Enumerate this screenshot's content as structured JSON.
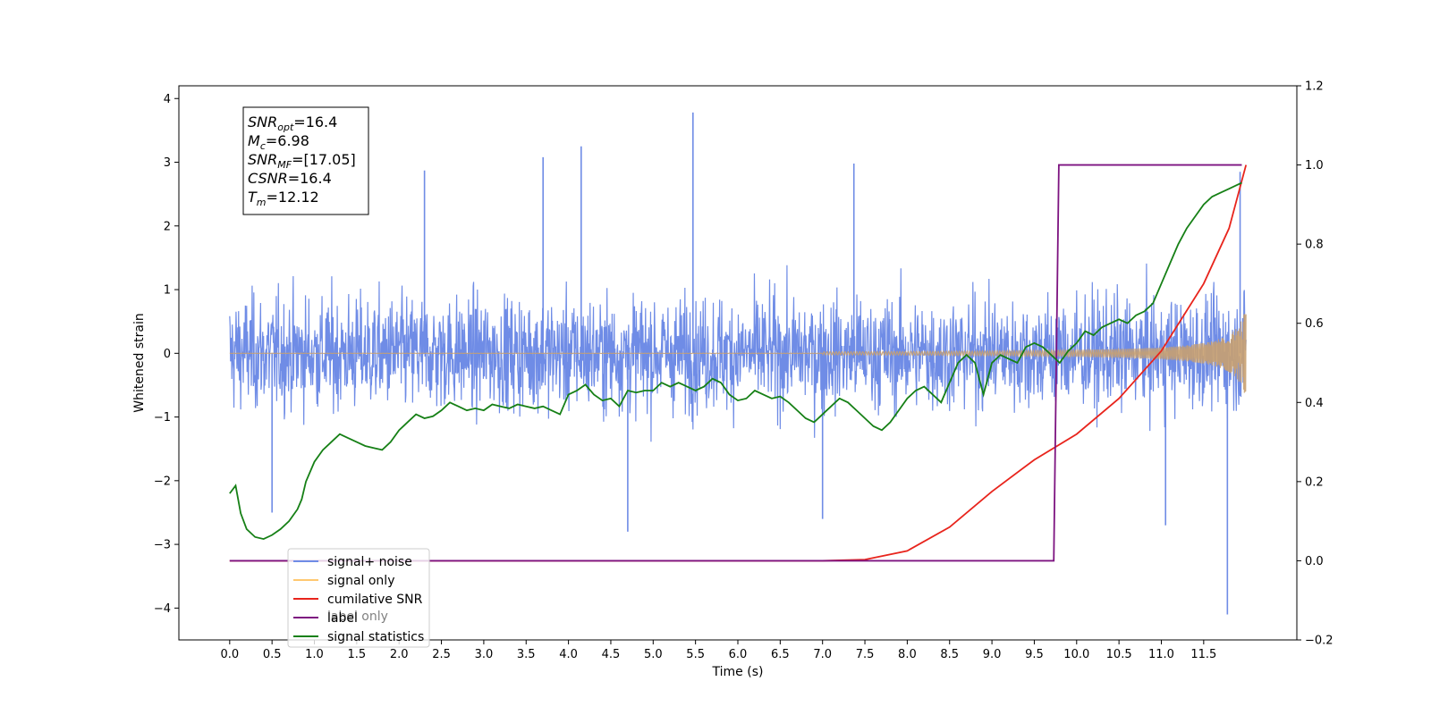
{
  "chart_data": {
    "type": "line",
    "title": "",
    "xlabel": "Time (s)",
    "ylabel": "Whitened strain",
    "xlim": [
      -0.6,
      12.6
    ],
    "ylim_left": [
      -4.5,
      4.2
    ],
    "ylim_right": [
      -0.2,
      1.2
    ],
    "x_ticks": [
      0.0,
      0.5,
      1.0,
      1.5,
      2.0,
      2.5,
      3.0,
      3.5,
      4.0,
      4.5,
      5.0,
      5.5,
      6.0,
      6.5,
      7.0,
      7.5,
      8.0,
      8.5,
      9.0,
      9.5,
      10.0,
      10.5,
      11.0,
      11.5
    ],
    "x_tick_labels": [
      "0.0",
      "0.5",
      "1.0",
      "1.5",
      "2.0",
      "2.5",
      "3.0",
      "3.5",
      "4.0",
      "4.5",
      "5.0",
      "5.5",
      "6.0",
      "6.5",
      "7.0",
      "7.5",
      "8.0",
      "8.5",
      "9.0",
      "9.5",
      "10.0",
      "10.5",
      "11.0",
      "11.5"
    ],
    "y_ticks_left": [
      -4,
      -3,
      -2,
      -1,
      0,
      1,
      2,
      3,
      4
    ],
    "y_tick_labels_left": [
      "−4",
      "−3",
      "−2",
      "−1",
      "0",
      "1",
      "2",
      "3",
      "4"
    ],
    "y_ticks_right": [
      -0.2,
      0.0,
      0.2,
      0.4,
      0.6,
      0.8,
      1.0,
      1.2
    ],
    "y_tick_labels_right": [
      "−0.2",
      "0.0",
      "0.2",
      "0.4",
      "0.6",
      "0.8",
      "1.0",
      "1.2"
    ],
    "grid": false,
    "legend_position": "lower-left",
    "annotation": {
      "lines": [
        {
          "base": "SNR",
          "sub": "opt",
          "value": "=16.4"
        },
        {
          "base": "M",
          "sub": "c",
          "value": "=6.98"
        },
        {
          "base": "SNR",
          "sub": "MF",
          "value": "=[17.05]"
        },
        {
          "base": "CSNR",
          "sub": "",
          "value": "=16.4"
        },
        {
          "base": "T",
          "sub": "m",
          "value": "=12.12"
        }
      ]
    },
    "series": [
      {
        "name": "signal+ noise",
        "axis": "left",
        "color": "#6f8ce6",
        "kind": "noise_band",
        "x_range": [
          0.0,
          12.0
        ],
        "envelope_low": -1.3,
        "envelope_high": 1.3,
        "spikes": [
          {
            "x": 5.47,
            "y": 3.78
          },
          {
            "x": 4.15,
            "y": 3.25
          },
          {
            "x": 7.37,
            "y": 2.98
          },
          {
            "x": 3.7,
            "y": 3.08
          },
          {
            "x": 2.3,
            "y": 2.87
          },
          {
            "x": 11.93,
            "y": 2.85
          },
          {
            "x": 11.78,
            "y": -4.1
          },
          {
            "x": 4.7,
            "y": -2.8
          },
          {
            "x": 7.0,
            "y": -2.6
          },
          {
            "x": 11.05,
            "y": -2.7
          },
          {
            "x": 0.5,
            "y": -2.5
          }
        ]
      },
      {
        "name": "signal only",
        "axis": "left",
        "color": "#c8a070",
        "kind": "chirp",
        "x_range": [
          0.0,
          12.0
        ],
        "amplitude_end": 0.72
      },
      {
        "name": "cumilative SNR",
        "axis": "right",
        "color": "#e8241c",
        "x": [
          0.0,
          7.0,
          7.5,
          8.0,
          8.5,
          9.0,
          9.5,
          10.0,
          10.5,
          11.0,
          11.5,
          11.8,
          12.0
        ],
        "y": [
          0.0,
          0.0,
          0.003,
          0.025,
          0.085,
          0.175,
          0.255,
          0.32,
          0.41,
          0.53,
          0.7,
          0.84,
          1.0
        ]
      },
      {
        "name": "label",
        "axis": "right",
        "color": "#7d1380",
        "x": [
          0.0,
          9.73,
          9.79,
          11.95
        ],
        "y": [
          0.0,
          0.0,
          1.0,
          1.0
        ]
      },
      {
        "name": "signal statistics",
        "axis": "right",
        "color": "#168016",
        "x": [
          0.0,
          0.07,
          0.13,
          0.2,
          0.3,
          0.4,
          0.5,
          0.6,
          0.7,
          0.8,
          0.85,
          0.9,
          1.0,
          1.1,
          1.2,
          1.3,
          1.4,
          1.5,
          1.6,
          1.7,
          1.8,
          1.9,
          2.0,
          2.1,
          2.2,
          2.3,
          2.4,
          2.5,
          2.6,
          2.7,
          2.8,
          2.9,
          3.0,
          3.1,
          3.2,
          3.3,
          3.4,
          3.5,
          3.6,
          3.7,
          3.8,
          3.9,
          4.0,
          4.1,
          4.2,
          4.3,
          4.4,
          4.5,
          4.6,
          4.7,
          4.8,
          4.9,
          5.0,
          5.1,
          5.2,
          5.3,
          5.4,
          5.5,
          5.6,
          5.7,
          5.8,
          5.9,
          6.0,
          6.1,
          6.2,
          6.3,
          6.4,
          6.5,
          6.6,
          6.7,
          6.8,
          6.9,
          7.0,
          7.1,
          7.2,
          7.3,
          7.4,
          7.5,
          7.6,
          7.7,
          7.8,
          7.9,
          8.0,
          8.1,
          8.2,
          8.3,
          8.4,
          8.5,
          8.6,
          8.7,
          8.8,
          8.9,
          9.0,
          9.1,
          9.2,
          9.3,
          9.35,
          9.4,
          9.5,
          9.6,
          9.7,
          9.8,
          9.9,
          10.0,
          10.1,
          10.2,
          10.3,
          10.4,
          10.5,
          10.6,
          10.7,
          10.8,
          10.9,
          11.0,
          11.1,
          11.2,
          11.3,
          11.4,
          11.5,
          11.6,
          11.7,
          11.8,
          11.9,
          11.95
        ],
        "y": [
          0.17,
          0.19,
          0.12,
          0.08,
          0.06,
          0.055,
          0.065,
          0.08,
          0.1,
          0.13,
          0.155,
          0.2,
          0.25,
          0.28,
          0.3,
          0.32,
          0.31,
          0.3,
          0.29,
          0.285,
          0.28,
          0.3,
          0.33,
          0.35,
          0.37,
          0.36,
          0.365,
          0.38,
          0.4,
          0.39,
          0.38,
          0.385,
          0.38,
          0.395,
          0.39,
          0.385,
          0.395,
          0.39,
          0.385,
          0.39,
          0.38,
          0.37,
          0.42,
          0.43,
          0.445,
          0.42,
          0.405,
          0.41,
          0.39,
          0.43,
          0.425,
          0.43,
          0.43,
          0.45,
          0.44,
          0.45,
          0.44,
          0.43,
          0.44,
          0.46,
          0.45,
          0.42,
          0.405,
          0.41,
          0.43,
          0.42,
          0.41,
          0.415,
          0.4,
          0.38,
          0.36,
          0.35,
          0.37,
          0.39,
          0.41,
          0.4,
          0.38,
          0.36,
          0.34,
          0.33,
          0.35,
          0.38,
          0.41,
          0.43,
          0.44,
          0.42,
          0.4,
          0.45,
          0.5,
          0.52,
          0.5,
          0.42,
          0.5,
          0.52,
          0.51,
          0.5,
          0.52,
          0.54,
          0.55,
          0.54,
          0.52,
          0.5,
          0.53,
          0.55,
          0.58,
          0.57,
          0.59,
          0.6,
          0.61,
          0.6,
          0.62,
          0.63,
          0.65,
          0.7,
          0.75,
          0.8,
          0.84,
          0.87,
          0.9,
          0.92,
          0.93,
          0.94,
          0.95,
          0.955
        ]
      }
    ],
    "legend_overlap_label": "label only"
  }
}
